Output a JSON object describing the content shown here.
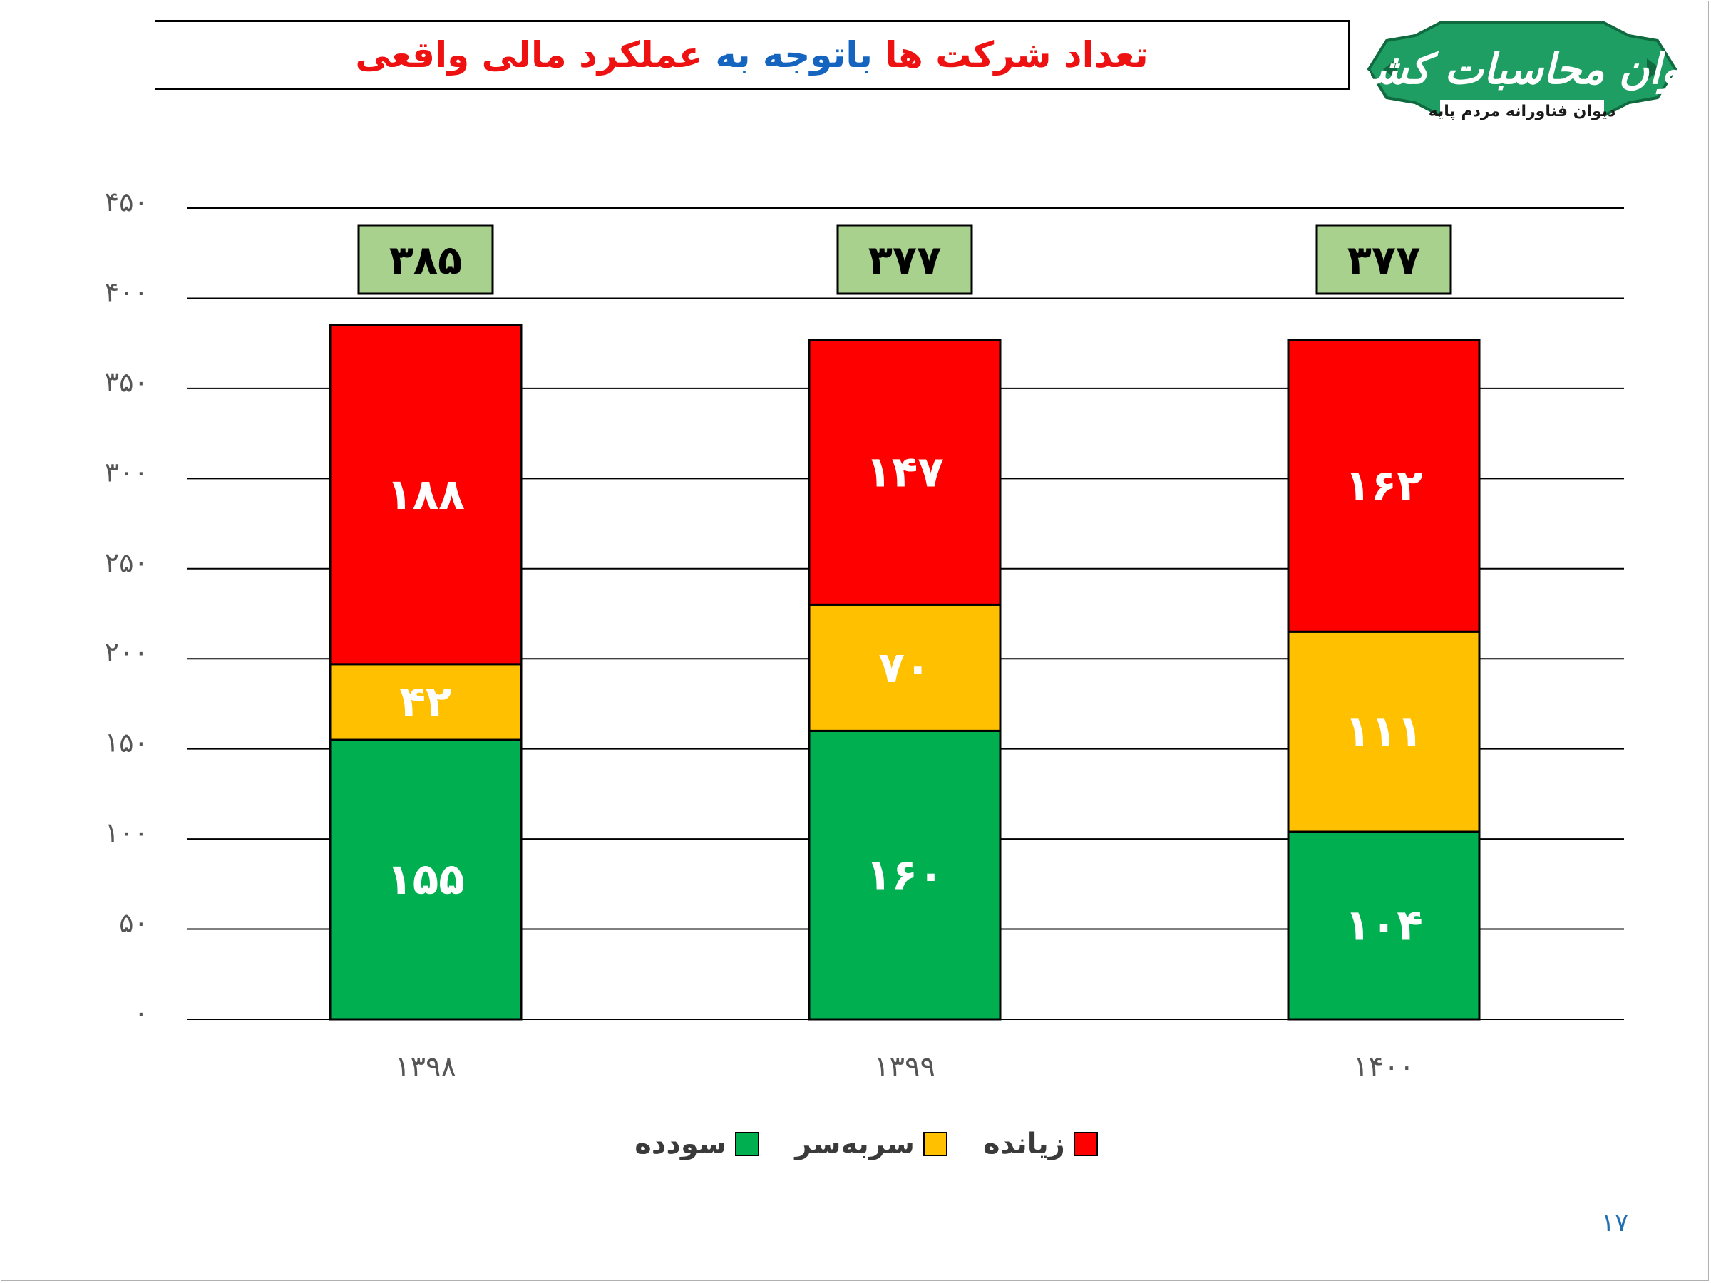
{
  "slide": {
    "title_parts": [
      {
        "text": "تعداد شرکت ها ",
        "color": "#ee1111"
      },
      {
        "text": "باتوجه به ",
        "color": "#1565c0"
      },
      {
        "text": "عملکرد مالی واقعی",
        "color": "#ee1111"
      }
    ],
    "page_number": "۱۷"
  },
  "logo": {
    "main_text": "دیوان محاسبات کشور",
    "sub_text": "دیوان فناورانه مردم پایه",
    "colors": {
      "background": "#1e9e63",
      "border": "#0f6b3f",
      "text": "#ffffff"
    }
  },
  "chart_data": {
    "type": "bar",
    "stacked": true,
    "categories": [
      "۱۳۹۸",
      "۱۳۹۹",
      "۱۴۰۰"
    ],
    "series": [
      {
        "name": "سودده",
        "values": [
          155,
          160,
          104
        ],
        "labels": [
          "۱۵۵",
          "۱۶۰",
          "۱۰۴"
        ],
        "color": "#00b050"
      },
      {
        "name": "سربه‌سر",
        "values": [
          42,
          70,
          111
        ],
        "labels": [
          "۴۲",
          "۷۰",
          "۱۱۱"
        ],
        "color": "#ffc000"
      },
      {
        "name": "زیانده",
        "values": [
          188,
          147,
          162
        ],
        "labels": [
          "۱۸۸",
          "۱۴۷",
          "۱۶۲"
        ],
        "color": "#ff0000"
      }
    ],
    "totals": [
      385,
      377,
      377
    ],
    "total_labels": [
      "۳۸۵",
      "۳۷۷",
      "۳۷۷"
    ],
    "total_box_color": "#a9d18e",
    "ylim": [
      0,
      450
    ],
    "y_ticks": [
      0,
      50,
      100,
      150,
      200,
      250,
      300,
      350,
      400,
      450
    ],
    "y_tick_labels": [
      "۰",
      "۵۰",
      "۱۰۰",
      "۱۵۰",
      "۲۰۰",
      "۲۵۰",
      "۳۰۰",
      "۳۵۰",
      "۴۰۰",
      "۴۵۰"
    ],
    "grid": true,
    "legend_position": "bottom",
    "title": "",
    "xlabel": "",
    "ylabel": ""
  }
}
